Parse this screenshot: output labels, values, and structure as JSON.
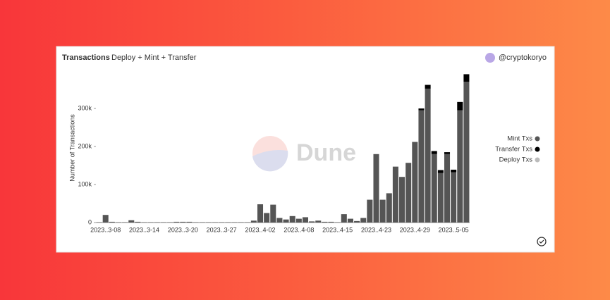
{
  "header": {
    "title": "Transactions",
    "subtitle": "Deploy + Mint + Transfer",
    "user": "@cryptokoryo"
  },
  "watermark": "Dune",
  "chart_data": {
    "type": "stacked-bar",
    "y_label": "Number of Transactions",
    "categories": [
      null,
      "2023..3-08",
      null,
      null,
      null,
      null,
      null,
      "2023..3-14",
      null,
      null,
      null,
      null,
      null,
      "2023..3-20",
      null,
      null,
      null,
      null,
      null,
      "2023..3-27",
      null,
      null,
      null,
      null,
      null,
      "2023..4-02",
      null,
      null,
      null,
      null,
      null,
      "2023..4-08",
      null,
      null,
      null,
      null,
      null,
      "2023..4-15",
      null,
      null,
      null,
      null,
      null,
      "2023..4-23",
      null,
      null,
      null,
      null,
      null,
      "2023..4-29",
      null,
      null,
      null,
      null,
      null,
      "2023..5-05",
      null,
      null
    ],
    "series": [
      {
        "name": "Mint Txs",
        "color": "#555555",
        "values": [
          1000,
          20000,
          2000,
          1000,
          1000,
          6000,
          2000,
          1000,
          1000,
          1000,
          1000,
          1000,
          2000,
          2000,
          2000,
          1000,
          1000,
          1000,
          1000,
          1000,
          1000,
          1000,
          1000,
          1000,
          5000,
          48000,
          25000,
          47000,
          12000,
          8000,
          17000,
          10000,
          14000,
          3000,
          5000,
          2000,
          2000,
          1000,
          22000,
          10000,
          4000,
          12000,
          60000,
          180000,
          60000,
          77000,
          147000,
          120000,
          157000,
          212000,
          295000,
          352000,
          180000,
          130000,
          180000,
          132000,
          295000,
          370000
        ]
      },
      {
        "name": "Transfer Txs",
        "color": "#000000",
        "values": [
          0,
          0,
          0,
          0,
          0,
          0,
          0,
          0,
          0,
          0,
          0,
          0,
          0,
          0,
          0,
          0,
          0,
          0,
          0,
          0,
          0,
          0,
          0,
          0,
          0,
          0,
          0,
          0,
          0,
          0,
          0,
          0,
          0,
          0,
          0,
          0,
          0,
          0,
          0,
          0,
          0,
          0,
          0,
          0,
          0,
          0,
          0,
          0,
          0,
          0,
          5000,
          10000,
          8000,
          8000,
          5000,
          7000,
          22000,
          20000
        ]
      },
      {
        "name": "Deploy Txs",
        "color": "#bbbbbb",
        "values": [
          0,
          0,
          0,
          0,
          0,
          0,
          0,
          0,
          0,
          0,
          0,
          0,
          0,
          0,
          0,
          0,
          0,
          0,
          0,
          0,
          0,
          0,
          0,
          0,
          0,
          0,
          0,
          0,
          0,
          0,
          0,
          0,
          0,
          0,
          0,
          0,
          0,
          0,
          0,
          0,
          0,
          0,
          0,
          0,
          0,
          0,
          0,
          0,
          0,
          0,
          0,
          0,
          0,
          0,
          0,
          0,
          0,
          0
        ]
      }
    ],
    "ylim": [
      0,
      400000
    ],
    "yticks": [
      0,
      {
        "value": 100000,
        "label": "100k"
      },
      {
        "value": 200000,
        "label": "200k"
      },
      {
        "value": 300000,
        "label": "300k"
      }
    ],
    "legend": "right"
  }
}
